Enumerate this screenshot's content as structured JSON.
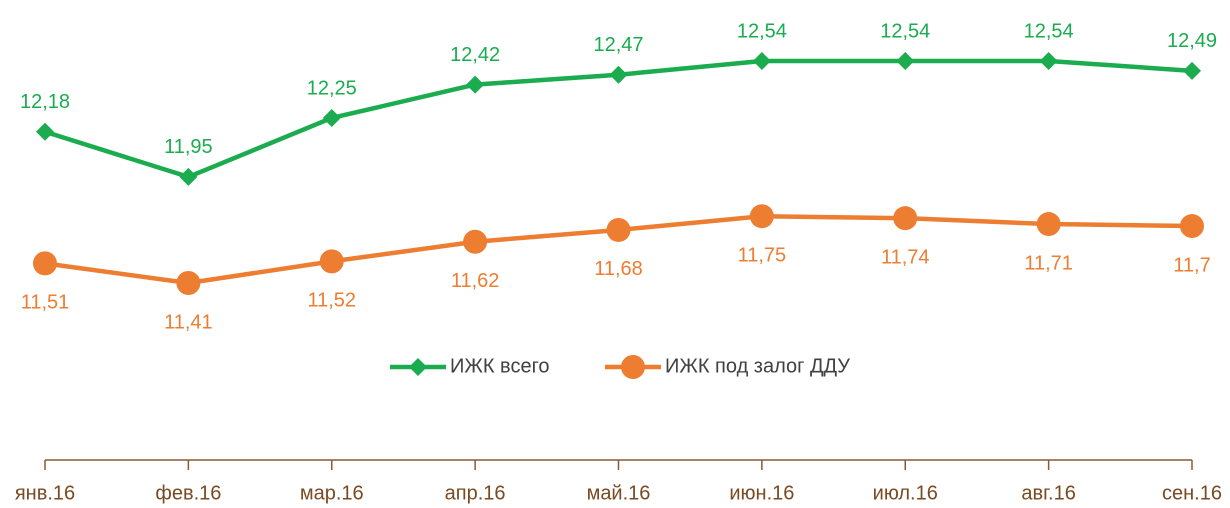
{
  "chart_data": {
    "type": "line",
    "categories": [
      "янв.16",
      "фев.16",
      "мар.16",
      "апр.16",
      "май.16",
      "июн.16",
      "июл.16",
      "авг.16",
      "сен.16"
    ],
    "series": [
      {
        "name": "ИЖК всего",
        "color": "#1aac4e",
        "marker": "diamond",
        "values": [
          12.18,
          11.95,
          12.25,
          12.42,
          12.47,
          12.54,
          12.54,
          12.54,
          12.49
        ],
        "value_labels": [
          "12,18",
          "11,95",
          "12,25",
          "12,42",
          "12,47",
          "12,54",
          "12,54",
          "12,54",
          "12,49"
        ]
      },
      {
        "name": "ИЖК под залог ДДУ",
        "color": "#ed7d31",
        "marker": "circle",
        "values": [
          11.51,
          11.41,
          11.52,
          11.62,
          11.68,
          11.75,
          11.74,
          11.71,
          11.7
        ],
        "value_labels": [
          "11,51",
          "11,41",
          "11,52",
          "11,62",
          "11,68",
          "11,75",
          "11,74",
          "11,71",
          "11,7"
        ]
      }
    ],
    "legend": "center"
  }
}
